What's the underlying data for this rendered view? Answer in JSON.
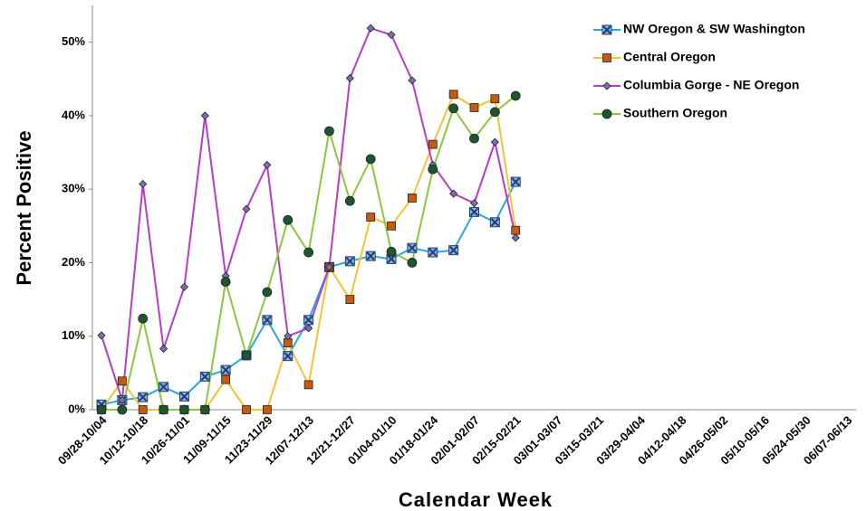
{
  "chart_data": {
    "type": "line",
    "y_label": "Percent Positive",
    "x_label": "Calendar Week",
    "categories": [
      "09/28-10/04",
      null,
      "10/12-10/18",
      null,
      "10/26-11/01",
      null,
      "11/09-11/15",
      null,
      "11/23-11/29",
      null,
      "12/07-12/13",
      null,
      "12/21-12/27",
      null,
      "01/04-01/10",
      null,
      "01/18-01/24",
      null,
      "02/01-02/07",
      null,
      "02/15-02/21",
      null,
      "03/01-03/07",
      null,
      "03/15-03/21",
      null,
      "03/29-04/04",
      null,
      "04/12-04/18",
      null,
      "04/26-05/02",
      null,
      "05/10-05/16",
      null,
      "05/24-05/30",
      null,
      "06/07-06/13"
    ],
    "ylim": [
      0,
      55
    ],
    "yticks": [
      {
        "value": 0,
        "label": "0%"
      },
      {
        "value": 10,
        "label": "10%"
      },
      {
        "value": 20,
        "label": "20%"
      },
      {
        "value": 30,
        "label": "30%"
      },
      {
        "value": 40,
        "label": "40%"
      },
      {
        "value": 50,
        "label": "50%"
      }
    ],
    "legend": "upper right",
    "series": [
      {
        "name": "NW Oregon & SW Washington",
        "color": "#2aa8de",
        "marker": "x-square",
        "marker_color": "#1f3f73",
        "values": [
          0.7,
          1.3,
          1.7,
          3.1,
          1.8,
          4.5,
          5.4,
          7.4,
          12.2,
          7.3,
          12.2,
          19.4,
          20.2,
          20.9,
          20.5,
          22.0,
          21.4,
          21.7,
          26.9,
          25.5,
          31.0,
          null,
          null,
          null,
          null,
          null,
          null,
          null,
          null,
          null,
          null,
          null,
          null,
          null,
          null,
          null,
          null
        ]
      },
      {
        "name": "Central Oregon",
        "color": "#f5c236",
        "marker": "square",
        "marker_color": "#c55a11",
        "values": [
          0,
          3.9,
          0,
          0,
          0,
          0,
          4.1,
          0,
          0,
          9.1,
          3.4,
          19.4,
          15.0,
          26.2,
          25.0,
          28.8,
          36.1,
          42.9,
          41.1,
          42.3,
          24.4,
          null,
          null,
          null,
          null,
          null,
          null,
          null,
          null,
          null,
          null,
          null,
          null,
          null,
          null,
          null,
          null
        ]
      },
      {
        "name": "Columbia Gorge - NE Oregon",
        "color": "#b83cc8",
        "marker": "diamond",
        "marker_color": "#7b6fb3",
        "values": [
          10.1,
          1.3,
          30.7,
          8.3,
          16.7,
          40.0,
          18.2,
          27.3,
          33.3,
          10.0,
          11.1,
          19.4,
          45.1,
          51.9,
          51.0,
          44.8,
          33.3,
          29.4,
          28.1,
          36.4,
          23.4,
          null,
          null,
          null,
          null,
          null,
          null,
          null,
          null,
          null,
          null,
          null,
          null,
          null,
          null,
          null,
          null
        ]
      },
      {
        "name": "Southern Oregon",
        "color": "#8dc63f",
        "marker": "circle",
        "marker_color": "#1e5631",
        "values": [
          0,
          0,
          12.4,
          0,
          0,
          0,
          17.4,
          7.4,
          16.0,
          25.8,
          21.4,
          37.9,
          28.4,
          34.1,
          21.5,
          20.0,
          32.7,
          41.0,
          36.9,
          40.5,
          42.7,
          null,
          null,
          null,
          null,
          null,
          null,
          null,
          null,
          null,
          null,
          null,
          null,
          null,
          null,
          null,
          null
        ]
      }
    ]
  }
}
